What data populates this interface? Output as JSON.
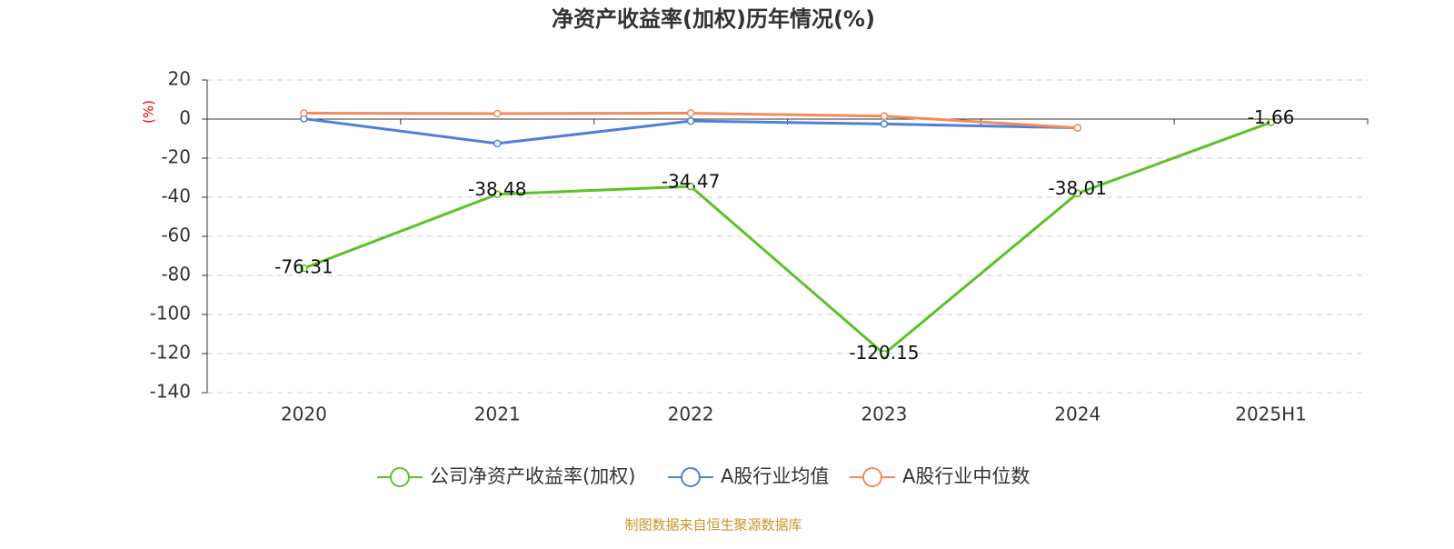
{
  "chart_data": {
    "type": "line",
    "title": "净资产收益率(加权)历年情况(%)",
    "y_label": "(%)",
    "source": "制图数据来自恒生聚源数据库",
    "categories": [
      "2020",
      "2021",
      "2022",
      "2023",
      "2024",
      "2025H1"
    ],
    "series": [
      {
        "name": "公司净资产收益率(加权)",
        "color": "#5bc226",
        "values": [
          -76.31,
          -38.48,
          -34.47,
          -120.15,
          -38.01,
          -1.66
        ],
        "labels": true
      },
      {
        "name": "A股行业均值",
        "color": "#4e7fdc",
        "values": [
          0.2,
          -12.5,
          -1.0,
          -2.5,
          -4.5,
          null
        ]
      },
      {
        "name": "A股行业中位数",
        "color": "#f28b5c",
        "values": [
          3.0,
          2.8,
          3.0,
          1.5,
          -4.5,
          null
        ]
      }
    ],
    "ylim": [
      -140,
      20
    ],
    "yticks": [
      -140,
      -120,
      -100,
      -80,
      -60,
      -40,
      -20,
      0,
      20
    ],
    "grid": true
  }
}
